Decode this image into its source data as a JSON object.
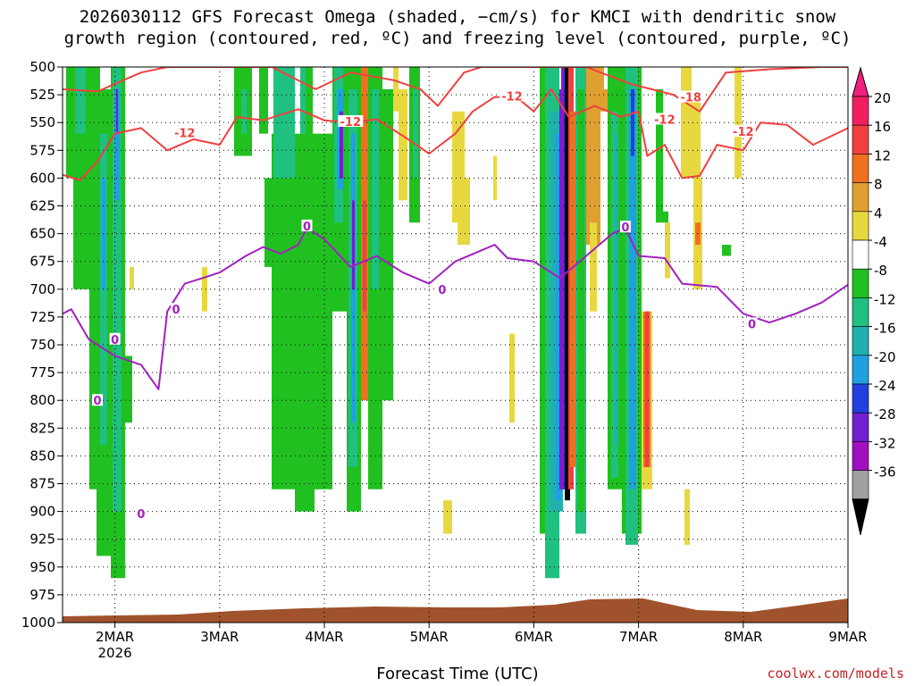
{
  "title_line1": "2026030112 GFS Forecast Omega (shaded, −cm/s) for KMCI with dendritic snow",
  "title_line2": "growth region (contoured, red, ºC) and freezing level (contoured, purple, ºC)",
  "xlabel": "Forecast Time (UTC)",
  "credit": "coolwx.com/models",
  "chart_data": {
    "type": "heatmap",
    "y_axis": {
      "unit": "hPa",
      "range": [
        1000,
        500
      ],
      "ticks": [
        500,
        525,
        550,
        575,
        600,
        625,
        650,
        675,
        700,
        725,
        750,
        775,
        800,
        825,
        850,
        875,
        900,
        925,
        950,
        975,
        1000
      ]
    },
    "x_axis": {
      "range": [
        "2026-03-01T12",
        "2026-03-09T00"
      ],
      "ticks": [
        {
          "t": "2026-03-02T00",
          "label": "2MAR",
          "sub": "2026"
        },
        {
          "t": "2026-03-03T00",
          "label": "3MAR",
          "sub": ""
        },
        {
          "t": "2026-03-04T00",
          "label": "4MAR",
          "sub": ""
        },
        {
          "t": "2026-03-05T00",
          "label": "5MAR",
          "sub": ""
        },
        {
          "t": "2026-03-06T00",
          "label": "6MAR",
          "sub": ""
        },
        {
          "t": "2026-03-07T00",
          "label": "7MAR",
          "sub": ""
        },
        {
          "t": "2026-03-08T00",
          "label": "8MAR",
          "sub": ""
        },
        {
          "t": "2026-03-09T00",
          "label": "9MAR",
          "sub": ""
        }
      ]
    },
    "colorbar": {
      "labels": [
        "20",
        "16",
        "12",
        "8",
        "4",
        "-4",
        "-8",
        "-12",
        "-16",
        "-20",
        "-24",
        "-28",
        "-32",
        "-36"
      ],
      "colors": [
        "#f02060",
        "#f04040",
        "#f07020",
        "#e0a030",
        "#e8d840",
        "#ffffff",
        "#20c020",
        "#20c080",
        "#20b0b0",
        "#20a0e0",
        "#2040e0",
        "#7020d0",
        "#a010c0",
        "#a0a0a0"
      ],
      "top_arrow": "#f02080",
      "bottom_arrow": "#000000"
    },
    "colors": {
      "snow_growth_contour": "#f04040",
      "freezing_level_contour": "#a020c0",
      "ground": "#a0522d"
    },
    "freezing_level_0C": [
      [
        "2026-03-01T12",
        722
      ],
      [
        "2026-03-01T14",
        718
      ],
      [
        "2026-03-01T18",
        745
      ],
      [
        "2026-03-02T00",
        760
      ],
      [
        "2026-03-02T06",
        768
      ],
      [
        "2026-03-02T10",
        790
      ],
      [
        "2026-03-02T12",
        720
      ],
      [
        "2026-03-02T16",
        695
      ],
      [
        "2026-03-02T20",
        690
      ],
      [
        "2026-03-03T00",
        685
      ],
      [
        "2026-03-03T06",
        670
      ],
      [
        "2026-03-03T10",
        662
      ],
      [
        "2026-03-03T14",
        668
      ],
      [
        "2026-03-03T18",
        660
      ],
      [
        "2026-03-03T20",
        645
      ],
      [
        "2026-03-04T00",
        655
      ],
      [
        "2026-03-04T06",
        680
      ],
      [
        "2026-03-04T12",
        670
      ],
      [
        "2026-03-04T18",
        685
      ],
      [
        "2026-03-05T00",
        695
      ],
      [
        "2026-03-05T06",
        675
      ],
      [
        "2026-03-05T12",
        665
      ],
      [
        "2026-03-05T15",
        660
      ],
      [
        "2026-03-05T18",
        672
      ],
      [
        "2026-03-06T00",
        675
      ],
      [
        "2026-03-06T06",
        690
      ],
      [
        "2026-03-06T12",
        670
      ],
      [
        "2026-03-06T18",
        650
      ],
      [
        "2026-03-06T21",
        645
      ],
      [
        "2026-03-07T00",
        670
      ],
      [
        "2026-03-07T06",
        672
      ],
      [
        "2026-03-07T10",
        695
      ],
      [
        "2026-03-07T18",
        698
      ],
      [
        "2026-03-08T00",
        722
      ],
      [
        "2026-03-08T06",
        730
      ],
      [
        "2026-03-08T12",
        722
      ],
      [
        "2026-03-08T18",
        712
      ],
      [
        "2026-03-09T00",
        696
      ]
    ],
    "snow_growth_minus12C": [
      [
        "2026-03-01T12",
        597
      ],
      [
        "2026-03-01T16",
        602
      ],
      [
        "2026-03-01T20",
        585
      ],
      [
        "2026-03-02T00",
        560
      ],
      [
        "2026-03-02T06",
        555
      ],
      [
        "2026-03-02T12",
        575
      ],
      [
        "2026-03-02T18",
        565
      ],
      [
        "2026-03-03T00",
        570
      ],
      [
        "2026-03-03T04",
        545
      ],
      [
        "2026-03-03T10",
        548
      ],
      [
        "2026-03-03T18",
        538
      ],
      [
        "2026-03-04T00",
        548
      ],
      [
        "2026-03-04T06",
        550
      ],
      [
        "2026-03-04T12",
        547
      ],
      [
        "2026-03-04T18",
        562
      ],
      [
        "2026-03-05T00",
        578
      ],
      [
        "2026-03-05T06",
        560
      ],
      [
        "2026-03-05T10",
        540
      ],
      [
        "2026-03-05T15",
        527
      ],
      [
        "2026-03-05T20",
        527
      ],
      [
        "2026-03-06T00",
        540
      ],
      [
        "2026-03-06T04",
        520
      ],
      [
        "2026-03-06T08",
        545
      ],
      [
        "2026-03-06T14",
        535
      ],
      [
        "2026-03-06T20",
        545
      ],
      [
        "2026-03-07T00",
        540
      ],
      [
        "2026-03-07T02",
        580
      ],
      [
        "2026-03-07T06",
        570
      ],
      [
        "2026-03-07T10",
        600
      ],
      [
        "2026-03-07T14",
        598
      ],
      [
        "2026-03-07T18",
        570
      ],
      [
        "2026-03-08T00",
        575
      ],
      [
        "2026-03-08T04",
        550
      ],
      [
        "2026-03-08T10",
        552
      ],
      [
        "2026-03-08T16",
        570
      ],
      [
        "2026-03-09T00",
        555
      ]
    ],
    "snow_growth_minus18C": [
      [
        "2026-03-01T12",
        520
      ],
      [
        "2026-03-01T20",
        522
      ],
      [
        "2026-03-02T06",
        505
      ],
      [
        "2026-03-02T12",
        500
      ],
      [
        "2026-03-03T12",
        500
      ],
      [
        "2026-03-03T22",
        520
      ],
      [
        "2026-03-04T06",
        505
      ],
      [
        "2026-03-04T16",
        512
      ],
      [
        "2026-03-04T22",
        520
      ],
      [
        "2026-03-05T02",
        535
      ],
      [
        "2026-03-05T08",
        505
      ],
      [
        "2026-03-05T12",
        500
      ],
      [
        "2026-03-06T12",
        500
      ],
      [
        "2026-03-06T22",
        515
      ],
      [
        "2026-03-07T08",
        525
      ],
      [
        "2026-03-07T14",
        540
      ],
      [
        "2026-03-07T20",
        505
      ],
      [
        "2026-03-08T06",
        502
      ],
      [
        "2026-03-08T18",
        500
      ],
      [
        "2026-03-09T00",
        500
      ]
    ],
    "contour_labels": [
      {
        "text": "-12",
        "t": "2026-03-02T16",
        "p": 559,
        "color": "#f04040"
      },
      {
        "text": "-12",
        "t": "2026-03-04T06",
        "p": 549,
        "color": "#f04040"
      },
      {
        "text": "-12",
        "t": "2026-03-05T19",
        "p": 526,
        "color": "#f04040"
      },
      {
        "text": "-18",
        "t": "2026-03-07T12",
        "p": 527,
        "color": "#f04040"
      },
      {
        "text": "-12",
        "t": "2026-03-07T06",
        "p": 547,
        "color": "#f04040"
      },
      {
        "text": "-12",
        "t": "2026-03-08T00",
        "p": 558,
        "color": "#f04040"
      },
      {
        "text": "0",
        "t": "2026-03-02T00",
        "p": 745,
        "color": "#a020c0"
      },
      {
        "text": "0",
        "t": "2026-03-01T20",
        "p": 800,
        "color": "#a020c0"
      },
      {
        "text": "0",
        "t": "2026-03-02T06",
        "p": 902,
        "color": "#a020c0"
      },
      {
        "text": "0",
        "t": "2026-03-02T14",
        "p": 718,
        "color": "#a020c0"
      },
      {
        "text": "0",
        "t": "2026-03-03T20",
        "p": 643,
        "color": "#a020c0"
      },
      {
        "text": "0",
        "t": "2026-03-05T03",
        "p": 700,
        "color": "#a020c0"
      },
      {
        "text": "0",
        "t": "2026-03-06T21",
        "p": 644,
        "color": "#a020c0"
      },
      {
        "text": "0",
        "t": "2026-03-08T02",
        "p": 731,
        "color": "#a020c0"
      }
    ]
  }
}
